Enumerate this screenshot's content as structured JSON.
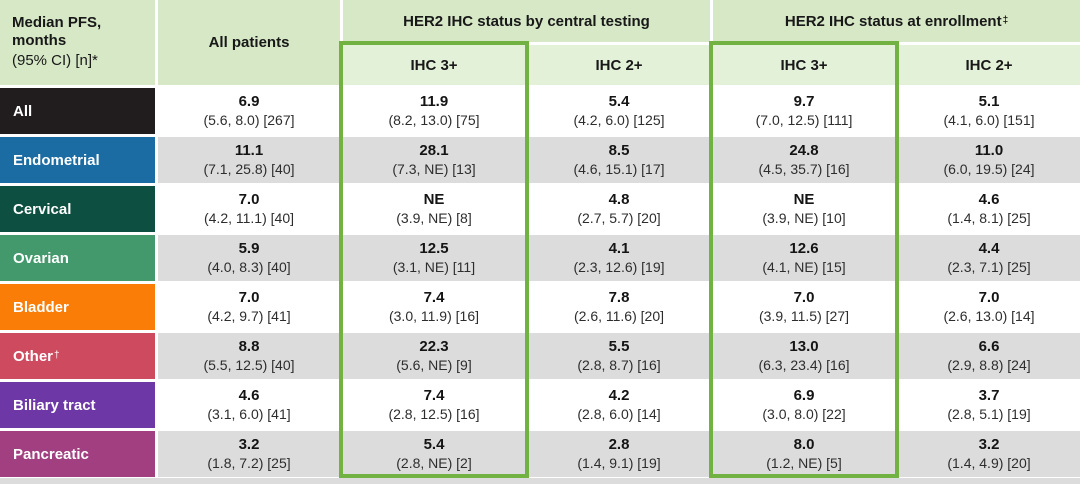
{
  "chart_data": {
    "type": "table",
    "header": {
      "row_dimension_bold": "Median PFS,\nmonths",
      "row_dimension_note": "(95% CI) [n]*",
      "all_patients": "All patients",
      "group_central": "HER2 IHC status by central testing",
      "group_enrollment": "HER2 IHC status at enrollment",
      "group_enrollment_sup": "‡",
      "sub_columns": [
        "IHC 3+",
        "IHC 2+",
        "IHC 3+",
        "IHC 2+"
      ]
    },
    "columns": [
      "All patients",
      "IHC 3+ (central testing)",
      "IHC 2+ (central testing)",
      "IHC 3+ (at enrollment)",
      "IHC 2+ (at enrollment)"
    ],
    "rows": [
      {
        "label": "All",
        "color": "#211d1e",
        "cells": [
          {
            "value": "6.9",
            "ci": "(5.6, 8.0) [267]"
          },
          {
            "value": "11.9",
            "ci": "(8.2, 13.0) [75]"
          },
          {
            "value": "5.4",
            "ci": "(4.2, 6.0) [125]"
          },
          {
            "value": "9.7",
            "ci": "(7.0, 12.5) [111]"
          },
          {
            "value": "5.1",
            "ci": "(4.1, 6.0) [151]"
          }
        ]
      },
      {
        "label": "Endometrial",
        "color": "#1b6ca3",
        "cells": [
          {
            "value": "11.1",
            "ci": "(7.1, 25.8) [40]"
          },
          {
            "value": "28.1",
            "ci": "(7.3, NE) [13]"
          },
          {
            "value": "8.5",
            "ci": "(4.6, 15.1) [17]"
          },
          {
            "value": "24.8",
            "ci": "(4.5, 35.7) [16]"
          },
          {
            "value": "11.0",
            "ci": "(6.0, 19.5) [24]"
          }
        ]
      },
      {
        "label": "Cervical",
        "color": "#0d4f40",
        "cells": [
          {
            "value": "7.0",
            "ci": "(4.2, 11.1) [40]"
          },
          {
            "value": "NE",
            "ci": "(3.9, NE) [8]"
          },
          {
            "value": "4.8",
            "ci": "(2.7, 5.7) [20]"
          },
          {
            "value": "NE",
            "ci": "(3.9, NE) [10]"
          },
          {
            "value": "4.6",
            "ci": "(1.4, 8.1) [25]"
          }
        ]
      },
      {
        "label": "Ovarian",
        "color": "#44996c",
        "cells": [
          {
            "value": "5.9",
            "ci": "(4.0, 8.3) [40]"
          },
          {
            "value": "12.5",
            "ci": "(3.1, NE) [11]"
          },
          {
            "value": "4.1",
            "ci": "(2.3, 12.6) [19]"
          },
          {
            "value": "12.6",
            "ci": "(4.1, NE) [15]"
          },
          {
            "value": "4.4",
            "ci": "(2.3, 7.1) [25]"
          }
        ]
      },
      {
        "label": "Bladder",
        "color": "#f97d07",
        "cells": [
          {
            "value": "7.0",
            "ci": "(4.2, 9.7) [41]"
          },
          {
            "value": "7.4",
            "ci": "(3.0, 11.9) [16]"
          },
          {
            "value": "7.8",
            "ci": "(2.6, 11.6) [20]"
          },
          {
            "value": "7.0",
            "ci": "(3.9, 11.5) [27]"
          },
          {
            "value": "7.0",
            "ci": "(2.6, 13.0) [14]"
          }
        ]
      },
      {
        "label": "Other",
        "label_sup": "†",
        "color": "#cd4a5f",
        "cells": [
          {
            "value": "8.8",
            "ci": "(5.5, 12.5) [40]"
          },
          {
            "value": "22.3",
            "ci": "(5.6, NE) [9]"
          },
          {
            "value": "5.5",
            "ci": "(2.8, 8.7) [16]"
          },
          {
            "value": "13.0",
            "ci": "(6.3, 23.4) [16]"
          },
          {
            "value": "6.6",
            "ci": "(2.9, 8.8) [24]"
          }
        ]
      },
      {
        "label": "Biliary tract",
        "color": "#6d38a5",
        "cells": [
          {
            "value": "4.6",
            "ci": "(3.1, 6.0) [41]"
          },
          {
            "value": "7.4",
            "ci": "(2.8, 12.5) [16]"
          },
          {
            "value": "4.2",
            "ci": "(2.8, 6.0) [14]"
          },
          {
            "value": "6.9",
            "ci": "(3.0, 8.0) [22]"
          },
          {
            "value": "3.7",
            "ci": "(2.8, 5.1) [19]"
          }
        ]
      },
      {
        "label": "Pancreatic",
        "color": "#a13f80",
        "cells": [
          {
            "value": "3.2",
            "ci": "(1.8, 7.2) [25]"
          },
          {
            "value": "5.4",
            "ci": "(2.8, NE) [2]"
          },
          {
            "value": "2.8",
            "ci": "(1.4, 9.1) [19]"
          },
          {
            "value": "8.0",
            "ci": "(1.2, NE) [5]"
          },
          {
            "value": "3.2",
            "ci": "(1.4, 4.9) [20]"
          }
        ]
      }
    ],
    "layout_hints": {
      "highlight_border_color": "#72b243",
      "header_group_bg": "#d6e8c6",
      "header_sub_bg": "#e3f1d9",
      "zebra_row_bg": "#dcdcdc",
      "highlighted_columns": [
        "IHC 3+ (central testing)",
        "IHC 3+ (at enrollment)"
      ]
    }
  }
}
